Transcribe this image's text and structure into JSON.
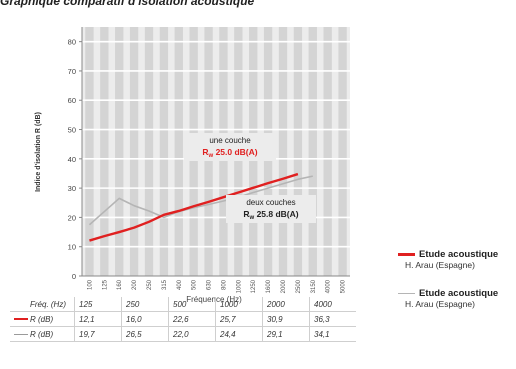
{
  "title": "Graphique comparatif d'isolation acoustique",
  "chart_data": {
    "type": "line",
    "xlabel": "Fréquence (Hz)",
    "ylabel": "Indice d'isolation R (dB)",
    "ylim": [
      0,
      85
    ],
    "yticks": [
      0,
      10,
      20,
      30,
      40,
      50,
      60,
      70,
      80
    ],
    "categories": [
      "100",
      "125",
      "160",
      "200",
      "250",
      "315",
      "400",
      "500",
      "630",
      "800",
      "1000",
      "1250",
      "1600",
      "2000",
      "2500",
      "3150",
      "4000",
      "5000"
    ],
    "grid": true,
    "series": [
      {
        "name": "Etude acoustique",
        "author": "H. Arau (Espagne)",
        "color": "#e02020",
        "values": [
          12.1,
          13.6,
          15.0,
          16.5,
          18.5,
          20.9,
          22.2,
          23.8,
          25.3,
          26.9,
          28.5,
          30.1,
          31.7,
          33.2,
          34.8,
          null,
          null,
          null
        ]
      },
      {
        "name": "Etude acoustique",
        "author": "H. Arau (Espagne)",
        "color": "#b5b5b5",
        "values": [
          17.5,
          22.0,
          26.5,
          24.0,
          22.2,
          20.0,
          22.0,
          23.3,
          24.4,
          25.6,
          26.9,
          28.5,
          30.0,
          31.5,
          33.0,
          34.1,
          null,
          null
        ]
      }
    ],
    "annotations": [
      {
        "line1": "une couche",
        "label": "R",
        "sub": "w",
        "value": "25.0 dB(A)",
        "color": "#e02020"
      },
      {
        "line1": "deux couches",
        "label": "R",
        "sub": "w",
        "value": "25.8 dB(A)",
        "color": "#222222"
      }
    ]
  },
  "table": {
    "rows": [
      {
        "label": "Fréq. (Hz)",
        "key_color": "",
        "values": [
          "125",
          "250",
          "500",
          "1000",
          "2000",
          "4000"
        ]
      },
      {
        "label": "R (dB)",
        "key_color": "#e02020",
        "values": [
          "12,1",
          "16,0",
          "22,6",
          "25,7",
          "30,9",
          "36,3"
        ]
      },
      {
        "label": "R (dB)",
        "key_color": "#9a9a9a",
        "values": [
          "19,7",
          "26,5",
          "22,0",
          "24,4",
          "29,1",
          "34,1"
        ]
      }
    ]
  }
}
